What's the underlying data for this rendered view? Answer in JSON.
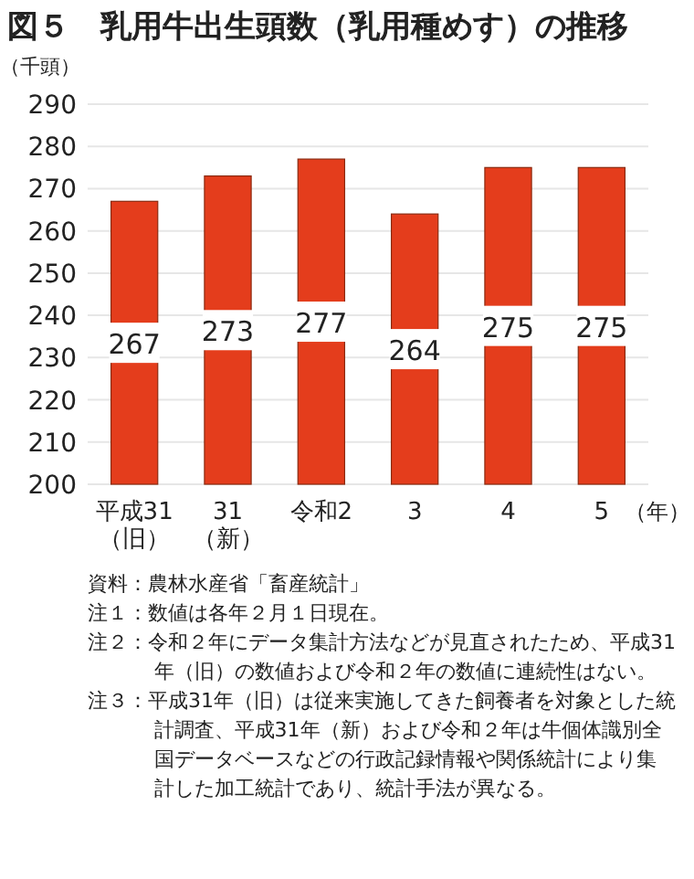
{
  "chart_data": {
    "type": "bar",
    "title": "図５　乳用牛出生頭数（乳用種めす）の推移",
    "ylabel": "（千頭）",
    "xlabel": "（年）",
    "categories": [
      "平成31\n（旧）",
      "31\n（新）",
      "令和2",
      "3",
      "4",
      "5"
    ],
    "values": [
      267,
      273,
      277,
      264,
      275,
      275
    ],
    "color": "#e43d1c",
    "ylim": [
      200,
      290
    ],
    "yticks": [
      200,
      210,
      220,
      230,
      240,
      250,
      260,
      270,
      280,
      290
    ],
    "grid": "y",
    "data_labels": true,
    "annotations": [
      "資料：農林水産省「畜産統計」",
      "注１：数値は各年２月１日現在。",
      "注２：令和２年にデータ集計方法などが見直されたため、平成31年（旧）の数値および令和２年の数値に連続性はない。",
      "注３：平成31年（旧）は従来実施してきた飼養者を対象とした統計調査、平成31年（新）および令和２年は牛個体識別全国データベースなどの行政記録情報や関係統計により集計した加工統計であり、統計手法が異なる。"
    ]
  }
}
